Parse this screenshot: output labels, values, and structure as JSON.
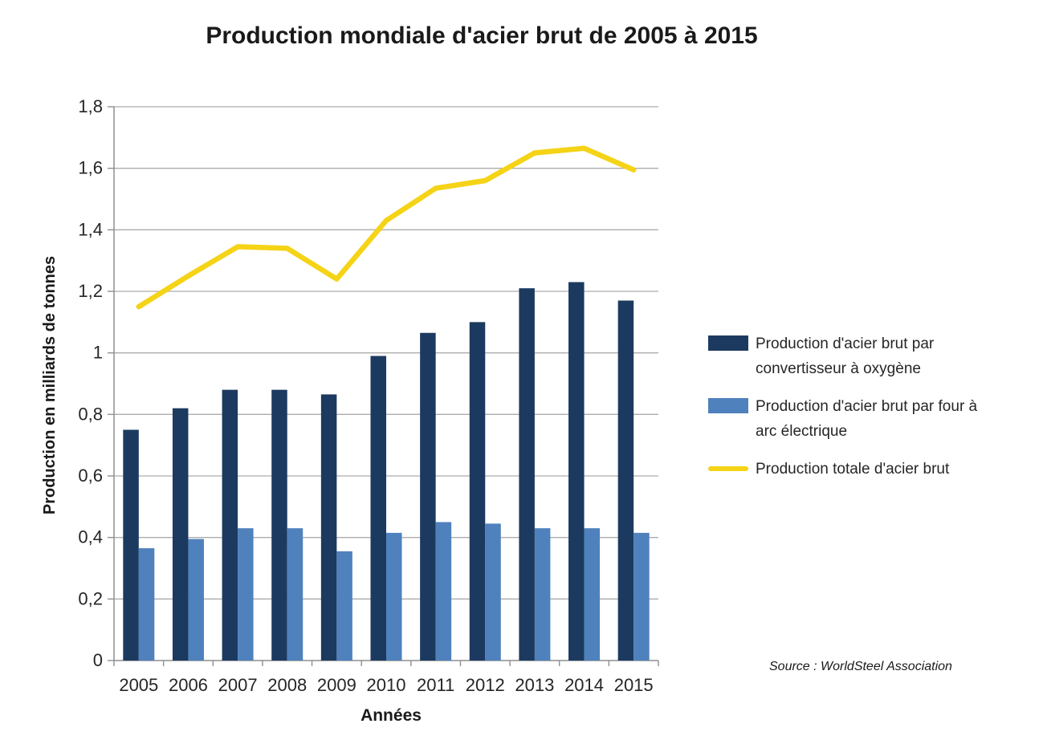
{
  "chart_data": {
    "type": "bar+line",
    "title": "Production mondiale d'acier brut de 2005 à 2015",
    "xlabel": "Années",
    "ylabel": "Production en milliards de tonnes",
    "source": "Source : WorldSteel Association",
    "categories": [
      "2005",
      "2006",
      "2007",
      "2008",
      "2009",
      "2010",
      "2011",
      "2012",
      "2013",
      "2014",
      "2015"
    ],
    "series": [
      {
        "name": "Production d'acier brut par convertisseur à oxygène",
        "type": "bar",
        "color": "#1C3A5F",
        "values": [
          0.75,
          0.82,
          0.88,
          0.88,
          0.865,
          0.99,
          1.065,
          1.1,
          1.21,
          1.23,
          1.17
        ]
      },
      {
        "name": "Production d'acier brut par four à arc électrique",
        "type": "bar",
        "color": "#4F81BD",
        "values": [
          0.365,
          0.395,
          0.43,
          0.43,
          0.355,
          0.415,
          0.45,
          0.445,
          0.43,
          0.43,
          0.415
        ]
      },
      {
        "name": "Production totale d'acier brut",
        "type": "line",
        "color": "#F5D316",
        "values": [
          1.15,
          1.25,
          1.345,
          1.34,
          1.24,
          1.43,
          1.535,
          1.56,
          1.65,
          1.665,
          1.595
        ]
      }
    ],
    "ylim": [
      0,
      1.8
    ],
    "ytick_step": 0.2,
    "ytick_labels": [
      "0",
      "0,2",
      "0,4",
      "0,6",
      "0,8",
      "1",
      "1,2",
      "1,4",
      "1,6",
      "1,8"
    ],
    "grid": true,
    "legend_position": "right",
    "colors": {
      "grid": "#ACACAC",
      "axis": "#8F8F8F",
      "tick_text": "#262626"
    }
  }
}
